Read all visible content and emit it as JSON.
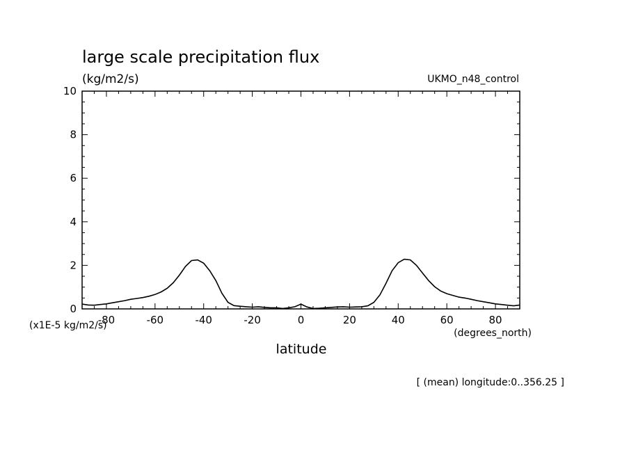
{
  "chart_data": {
    "type": "line",
    "title": "large scale precipitation flux",
    "units": "(kg/m2/s)",
    "dataset": "UKMO_n48_control",
    "scale_note": "(x1E-5 kg/m2/s)",
    "xlabel": "latitude",
    "x_units": "(degrees_north)",
    "footer": "[ (mean) longitude:0..356.25 ]",
    "xlim": [
      -90,
      90
    ],
    "ylim": [
      0,
      10
    ],
    "x_ticks": [
      -80,
      -60,
      -40,
      -20,
      0,
      20,
      40,
      60,
      80
    ],
    "y_ticks": [
      0,
      2,
      4,
      6,
      8,
      10
    ],
    "grid": false,
    "series": [
      {
        "x": [
          -90,
          -87.5,
          -85,
          -82.5,
          -80,
          -77.5,
          -75,
          -72.5,
          -70,
          -67.5,
          -65,
          -62.5,
          -60,
          -57.5,
          -55,
          -52.5,
          -50,
          -47.5,
          -45,
          -42.5,
          -40,
          -37.5,
          -35,
          -32.5,
          -30,
          -27.5,
          -25,
          -22.5,
          -20,
          -17.5,
          -15,
          -12.5,
          -10,
          -7.5,
          -5,
          -2.5,
          0,
          2.5,
          5,
          7.5,
          10,
          12.5,
          15,
          17.5,
          20,
          22.5,
          25,
          27.5,
          30,
          32.5,
          35,
          37.5,
          40,
          42.5,
          45,
          47.5,
          50,
          52.5,
          55,
          57.5,
          60,
          62.5,
          65,
          67.5,
          70,
          72.5,
          75,
          77.5,
          80,
          82.5,
          85,
          87.5,
          90
        ],
        "values": [
          0.22,
          0.18,
          0.17,
          0.2,
          0.23,
          0.28,
          0.33,
          0.38,
          0.44,
          0.48,
          0.52,
          0.58,
          0.66,
          0.78,
          0.95,
          1.2,
          1.55,
          1.95,
          2.22,
          2.25,
          2.1,
          1.75,
          1.3,
          0.72,
          0.3,
          0.15,
          0.12,
          0.1,
          0.08,
          0.1,
          0.07,
          0.05,
          0.05,
          0.02,
          0.05,
          0.1,
          0.22,
          0.09,
          0.02,
          0.03,
          0.05,
          0.07,
          0.09,
          0.1,
          0.08,
          0.09,
          0.1,
          0.14,
          0.3,
          0.65,
          1.18,
          1.75,
          2.12,
          2.28,
          2.25,
          2.0,
          1.65,
          1.3,
          1.02,
          0.82,
          0.7,
          0.62,
          0.54,
          0.5,
          0.44,
          0.38,
          0.33,
          0.28,
          0.23,
          0.2,
          0.17,
          0.14,
          0.18
        ]
      }
    ]
  }
}
